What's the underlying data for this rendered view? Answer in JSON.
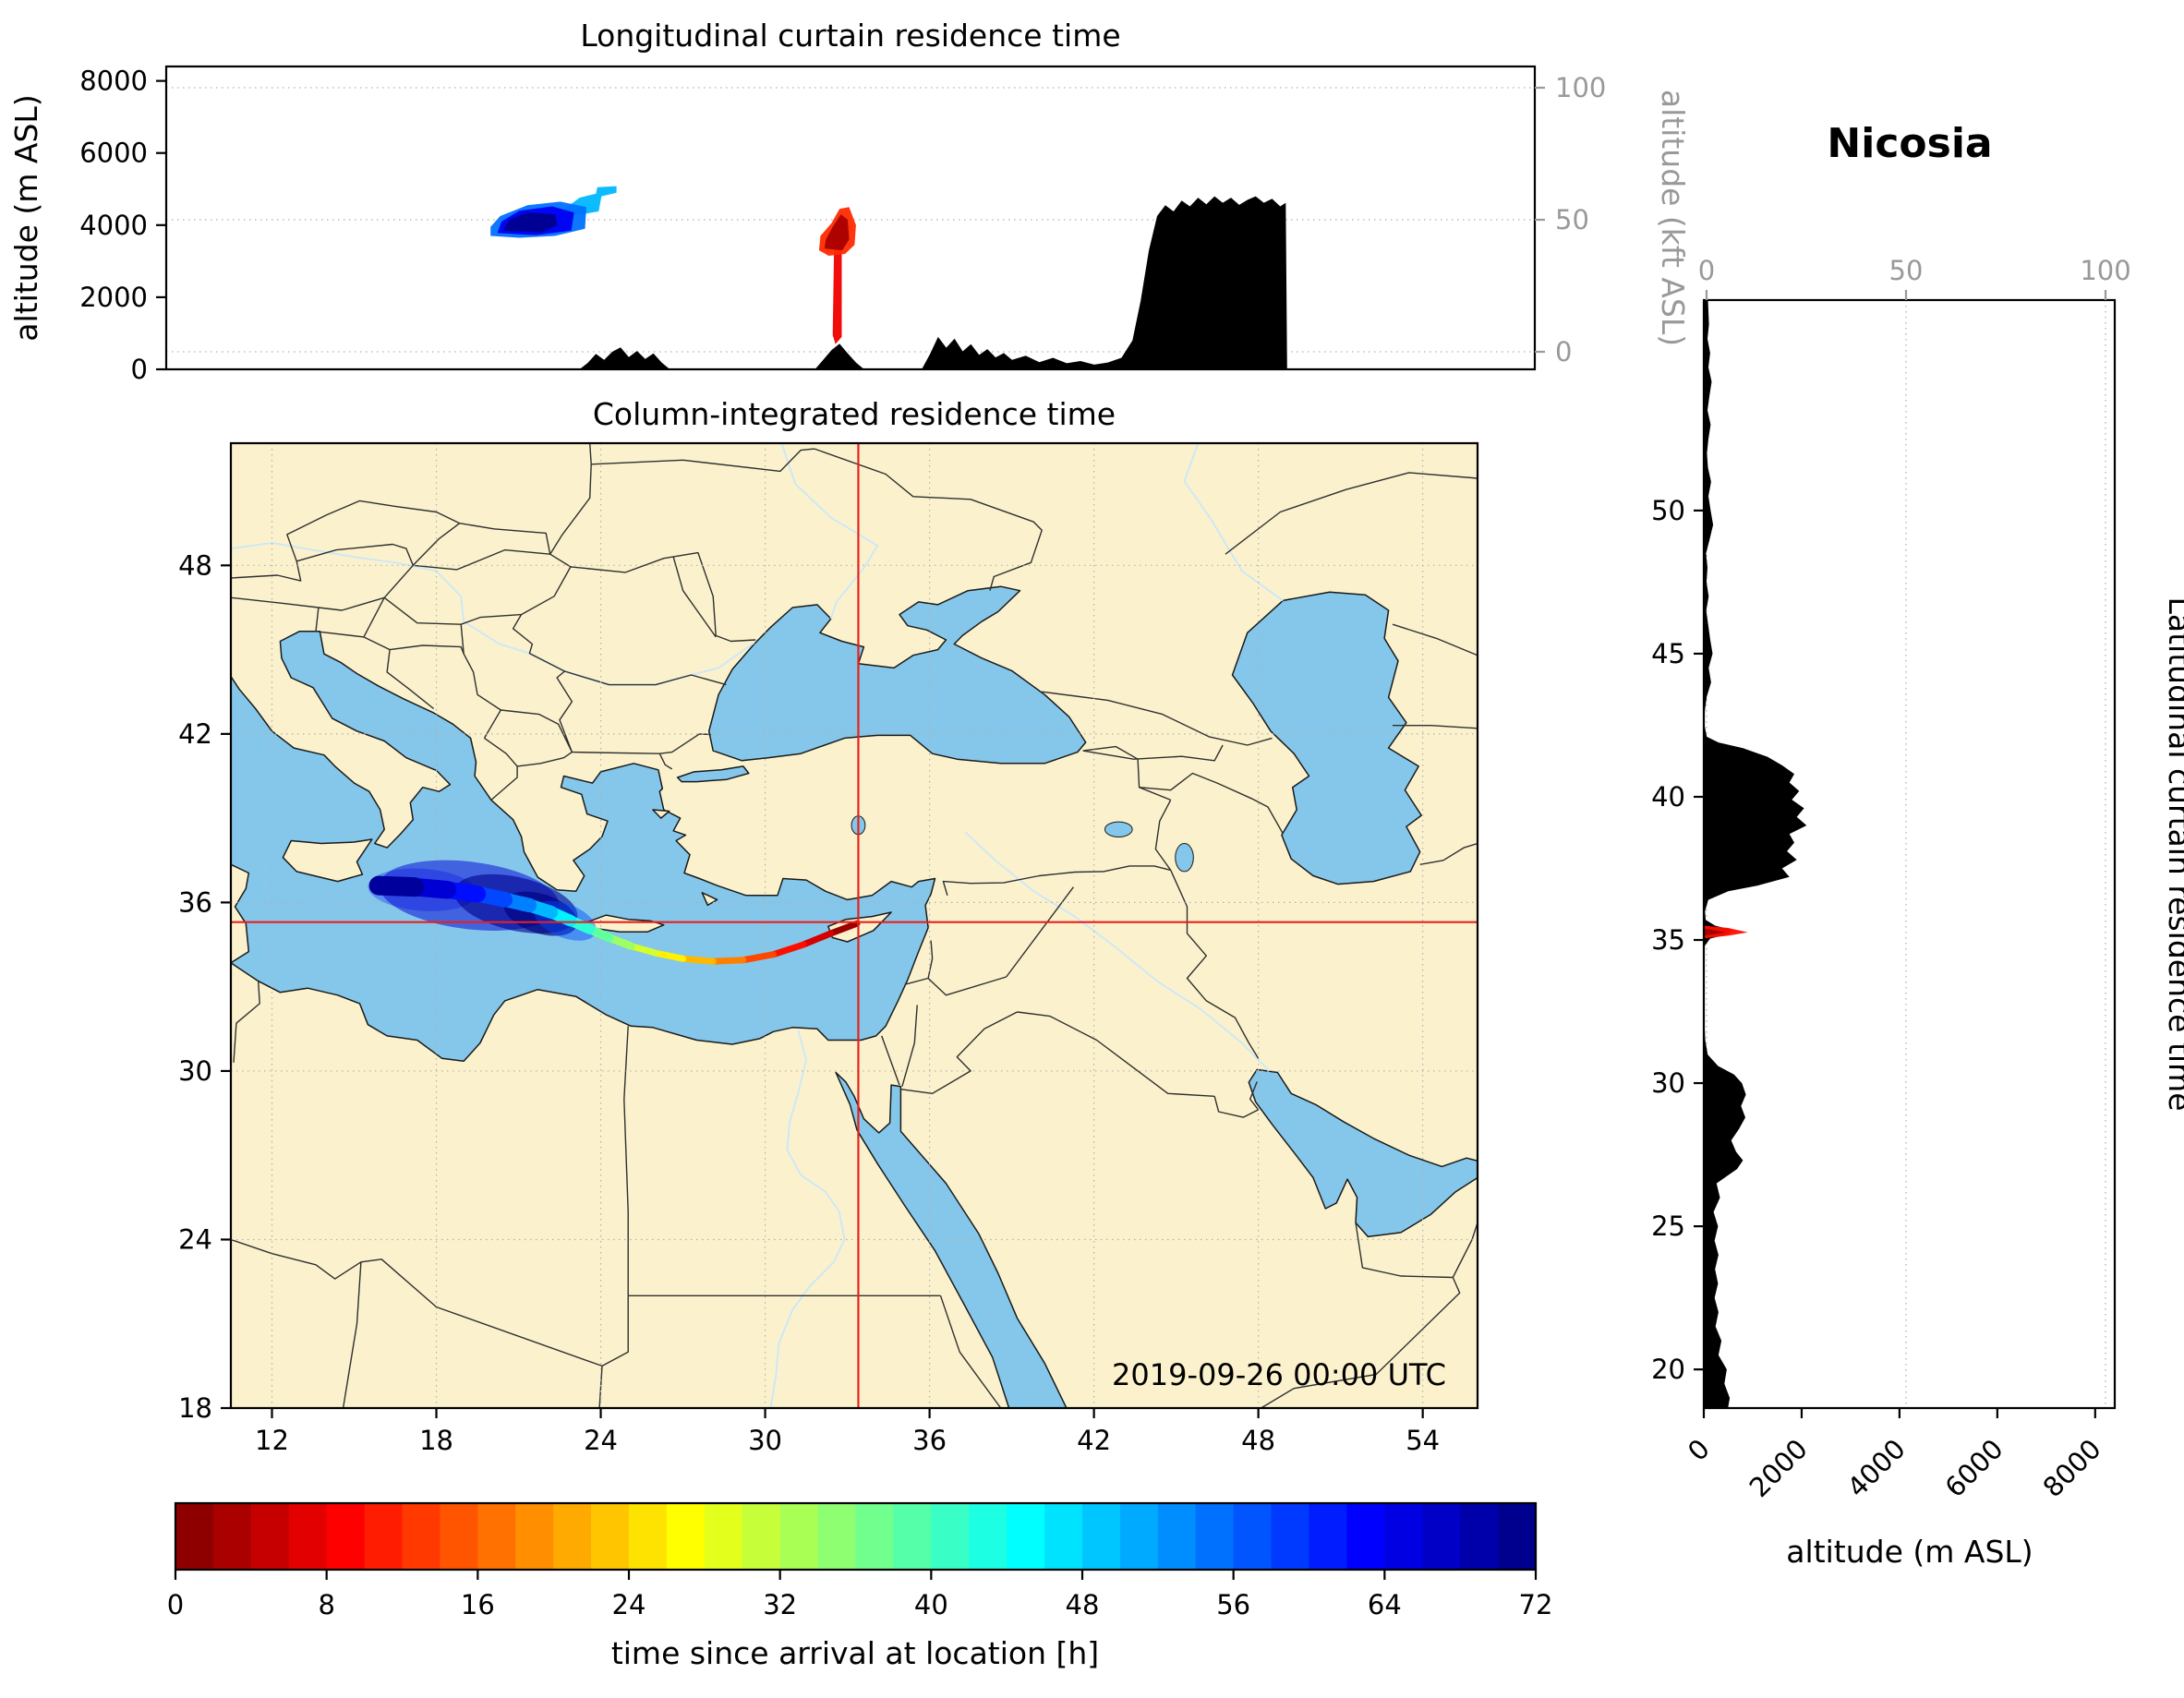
{
  "figure": {
    "station_title": "Nicosia",
    "datetime_label": "2019-09-26 00:00 UTC"
  },
  "colors": {
    "land": "#fbf2cd",
    "water": "#84c7ea",
    "terrain": "#000000",
    "crosshair": "#e8211d",
    "grid": "#b0b0b0",
    "secondary_axis": "#999999",
    "river": "#cfe8f5",
    "border_line": "#2f2f2f",
    "coastline": "#1a1a1a"
  },
  "chart_data": [
    {
      "id": "longitudinal_curtain",
      "type": "area",
      "title": "Longitudinal curtain residence time",
      "ylabel": "altitude (m ASL)",
      "ylabel_right": "altitude (kft ASL)",
      "xlim": [
        8.1,
        58.1
      ],
      "ylim": [
        0,
        8400
      ],
      "yticks": [
        0,
        2000,
        4000,
        6000,
        8000
      ],
      "yticks_right": [
        0,
        50,
        100
      ],
      "terrain": [
        [
          8.1,
          0
        ],
        [
          23.2,
          0
        ],
        [
          23.5,
          180
        ],
        [
          23.8,
          430
        ],
        [
          24.1,
          260
        ],
        [
          24.4,
          490
        ],
        [
          24.7,
          610
        ],
        [
          25.0,
          340
        ],
        [
          25.3,
          510
        ],
        [
          25.6,
          290
        ],
        [
          25.9,
          440
        ],
        [
          26.2,
          190
        ],
        [
          26.5,
          0
        ],
        [
          31.8,
          0
        ],
        [
          32.1,
          260
        ],
        [
          32.4,
          530
        ],
        [
          32.7,
          710
        ],
        [
          33.0,
          440
        ],
        [
          33.3,
          190
        ],
        [
          33.6,
          0
        ],
        [
          35.7,
          0
        ],
        [
          36.0,
          420
        ],
        [
          36.3,
          900
        ],
        [
          36.6,
          600
        ],
        [
          36.9,
          850
        ],
        [
          37.2,
          500
        ],
        [
          37.5,
          700
        ],
        [
          37.8,
          400
        ],
        [
          38.1,
          560
        ],
        [
          38.4,
          330
        ],
        [
          38.7,
          450
        ],
        [
          39.0,
          260
        ],
        [
          39.5,
          380
        ],
        [
          40.0,
          200
        ],
        [
          40.5,
          320
        ],
        [
          41.0,
          170
        ],
        [
          41.5,
          230
        ],
        [
          42.0,
          130
        ],
        [
          42.5,
          190
        ],
        [
          43.0,
          320
        ],
        [
          43.4,
          800
        ],
        [
          43.7,
          1900
        ],
        [
          44.0,
          3300
        ],
        [
          44.3,
          4250
        ],
        [
          44.6,
          4550
        ],
        [
          44.9,
          4380
        ],
        [
          45.2,
          4680
        ],
        [
          45.5,
          4520
        ],
        [
          45.8,
          4760
        ],
        [
          46.1,
          4580
        ],
        [
          46.4,
          4800
        ],
        [
          46.7,
          4620
        ],
        [
          47.0,
          4760
        ],
        [
          47.3,
          4560
        ],
        [
          47.6,
          4700
        ],
        [
          47.9,
          4800
        ],
        [
          48.2,
          4620
        ],
        [
          48.5,
          4730
        ],
        [
          48.8,
          4520
        ],
        [
          49.0,
          4620
        ],
        [
          49.05,
          0
        ],
        [
          58.1,
          0
        ]
      ],
      "plume_patches": [
        {
          "time_h": 50,
          "poly": [
            [
              22.9,
              4250
            ],
            [
              23.9,
              4380
            ],
            [
              24.0,
              4800
            ],
            [
              24.55,
              4900
            ],
            [
              24.55,
              5080
            ],
            [
              23.85,
              5050
            ],
            [
              23.8,
              4870
            ],
            [
              23.2,
              4760
            ],
            [
              22.6,
              4420
            ]
          ]
        },
        {
          "time_h": 55,
          "poly": [
            [
              19.95,
              3700
            ],
            [
              21.0,
              3650
            ],
            [
              22.3,
              3700
            ],
            [
              23.4,
              3900
            ],
            [
              23.45,
              4500
            ],
            [
              22.5,
              4650
            ],
            [
              21.3,
              4550
            ],
            [
              20.3,
              4250
            ],
            [
              19.95,
              3950
            ]
          ]
        },
        {
          "time_h": 64,
          "poly": [
            [
              20.2,
              3780
            ],
            [
              21.6,
              3720
            ],
            [
              22.9,
              3850
            ],
            [
              23.0,
              4350
            ],
            [
              22.2,
              4520
            ],
            [
              21.0,
              4400
            ],
            [
              20.35,
              4100
            ]
          ]
        },
        {
          "time_h": 71,
          "poly": [
            [
              20.4,
              3850
            ],
            [
              21.8,
              3800
            ],
            [
              22.4,
              4000
            ],
            [
              22.3,
              4300
            ],
            [
              21.3,
              4350
            ],
            [
              20.65,
              4150
            ]
          ]
        },
        {
          "time_h": 8,
          "poly": [
            [
              32.5,
              3400
            ],
            [
              32.78,
              3400
            ],
            [
              32.78,
              900
            ],
            [
              32.55,
              700
            ],
            [
              32.45,
              950
            ]
          ]
        },
        {
          "time_h": 12,
          "poly": [
            [
              31.95,
              3300
            ],
            [
              32.3,
              3150
            ],
            [
              32.9,
              3200
            ],
            [
              33.25,
              3450
            ],
            [
              33.3,
              4000
            ],
            [
              33.05,
              4500
            ],
            [
              32.7,
              4450
            ],
            [
              32.4,
              4050
            ],
            [
              32.0,
              3700
            ]
          ]
        },
        {
          "time_h": 3,
          "poly": [
            [
              32.15,
              3350
            ],
            [
              32.8,
              3300
            ],
            [
              33.05,
              3600
            ],
            [
              33.0,
              4150
            ],
            [
              32.75,
              4300
            ],
            [
              32.45,
              3950
            ],
            [
              32.2,
              3600
            ]
          ]
        }
      ]
    },
    {
      "id": "column_integrated_map",
      "type": "heatmap",
      "title": "Column-integrated residence time",
      "xlim": [
        10.5,
        56.0
      ],
      "ylim": [
        18.0,
        52.35
      ],
      "xticks": [
        12,
        18,
        24,
        30,
        36,
        42,
        48,
        54
      ],
      "yticks": [
        18,
        24,
        30,
        36,
        42,
        48
      ],
      "receptor": {
        "lon": 33.4,
        "lat": 35.3
      },
      "trajectory": [
        [
          33.35,
          35.25,
          0
        ],
        [
          32.4,
          34.9,
          4
        ],
        [
          31.4,
          34.5,
          8
        ],
        [
          30.3,
          34.15,
          12
        ],
        [
          29.2,
          33.95,
          16
        ],
        [
          28.1,
          33.9,
          20
        ],
        [
          27.0,
          34.0,
          24
        ],
        [
          26.0,
          34.2,
          28
        ],
        [
          25.1,
          34.45,
          32
        ],
        [
          24.3,
          34.75,
          36
        ],
        [
          23.6,
          35.05,
          40
        ],
        [
          22.9,
          35.35,
          44
        ],
        [
          22.2,
          35.65,
          48
        ],
        [
          21.4,
          35.9,
          52
        ],
        [
          20.5,
          36.1,
          56
        ],
        [
          19.5,
          36.3,
          60
        ],
        [
          18.4,
          36.45,
          64
        ],
        [
          17.2,
          36.55,
          68
        ],
        [
          15.9,
          36.6,
          72
        ]
      ],
      "dispersion_blobs": [
        {
          "time_h": 62,
          "lon": 17.5,
          "lat": 36.45,
          "rx_deg": 2.0,
          "ry_deg": 0.75,
          "rot_deg": 4,
          "opacity": 0.3
        },
        {
          "time_h": 66,
          "lon": 19.2,
          "lat": 36.25,
          "rx_deg": 3.3,
          "ry_deg": 1.2,
          "rot_deg": 7,
          "opacity": 0.5
        },
        {
          "time_h": 71,
          "lon": 20.9,
          "lat": 35.95,
          "rx_deg": 2.3,
          "ry_deg": 0.95,
          "rot_deg": 13,
          "opacity": 0.6
        },
        {
          "time_h": 72,
          "lon": 21.8,
          "lat": 35.6,
          "rx_deg": 1.4,
          "ry_deg": 0.7,
          "rot_deg": 18,
          "opacity": 0.65
        },
        {
          "time_h": 58,
          "lon": 22.7,
          "lat": 35.35,
          "rx_deg": 1.2,
          "ry_deg": 0.6,
          "rot_deg": 22,
          "opacity": 0.45
        }
      ]
    },
    {
      "id": "latitudinal_curtain",
      "type": "area",
      "title_right": "Latitudinal curtain residence time",
      "xlabel": "altitude (m ASL)",
      "xlim": [
        0,
        8400
      ],
      "xticks": [
        0,
        2000,
        4000,
        6000,
        8000
      ],
      "xticks_top": [
        0,
        50,
        100
      ],
      "ylim": [
        18.65,
        57.35
      ],
      "yticks": [
        20,
        25,
        30,
        35,
        40,
        45,
        50
      ],
      "terrain": [
        [
          18.0,
          380
        ],
        [
          18.5,
          480
        ],
        [
          19.0,
          530
        ],
        [
          19.5,
          420
        ],
        [
          20.0,
          470
        ],
        [
          20.5,
          300
        ],
        [
          21.0,
          360
        ],
        [
          21.5,
          240
        ],
        [
          22.0,
          300
        ],
        [
          22.5,
          220
        ],
        [
          23.0,
          290
        ],
        [
          23.5,
          230
        ],
        [
          24.0,
          300
        ],
        [
          24.5,
          220
        ],
        [
          25.0,
          290
        ],
        [
          25.5,
          200
        ],
        [
          26.0,
          330
        ],
        [
          26.5,
          260
        ],
        [
          27.0,
          680
        ],
        [
          27.3,
          800
        ],
        [
          27.6,
          660
        ],
        [
          28.0,
          560
        ],
        [
          28.4,
          720
        ],
        [
          28.8,
          850
        ],
        [
          29.2,
          760
        ],
        [
          29.6,
          860
        ],
        [
          30.0,
          780
        ],
        [
          30.3,
          620
        ],
        [
          30.6,
          290
        ],
        [
          31.0,
          80
        ],
        [
          31.5,
          30
        ],
        [
          32.0,
          15
        ],
        [
          33.0,
          10
        ],
        [
          34.0,
          10
        ],
        [
          34.8,
          20
        ],
        [
          35.05,
          130
        ],
        [
          35.2,
          500
        ],
        [
          35.35,
          580
        ],
        [
          35.5,
          230
        ],
        [
          35.7,
          40
        ],
        [
          36.0,
          25
        ],
        [
          36.4,
          90
        ],
        [
          36.7,
          500
        ],
        [
          36.9,
          1100
        ],
        [
          37.2,
          1750
        ],
        [
          37.5,
          1600
        ],
        [
          37.8,
          1900
        ],
        [
          38.1,
          1700
        ],
        [
          38.4,
          1850
        ],
        [
          38.7,
          1750
        ],
        [
          39.0,
          2100
        ],
        [
          39.3,
          1900
        ],
        [
          39.6,
          2050
        ],
        [
          39.9,
          1800
        ],
        [
          40.2,
          1950
        ],
        [
          40.5,
          1750
        ],
        [
          40.8,
          1850
        ],
        [
          41.1,
          1600
        ],
        [
          41.4,
          1300
        ],
        [
          41.7,
          800
        ],
        [
          41.9,
          300
        ],
        [
          42.1,
          60
        ],
        [
          42.5,
          15
        ],
        [
          43.0,
          20
        ],
        [
          43.5,
          60
        ],
        [
          44.0,
          150
        ],
        [
          44.5,
          100
        ],
        [
          45.0,
          180
        ],
        [
          45.5,
          130
        ],
        [
          46.0,
          90
        ],
        [
          46.5,
          50
        ],
        [
          47.0,
          100
        ],
        [
          47.5,
          55
        ],
        [
          48.0,
          75
        ],
        [
          48.5,
          45
        ],
        [
          49.0,
          120
        ],
        [
          49.5,
          190
        ],
        [
          50.0,
          140
        ],
        [
          50.5,
          95
        ],
        [
          51.0,
          150
        ],
        [
          51.5,
          85
        ],
        [
          52.0,
          65
        ],
        [
          52.5,
          95
        ],
        [
          53.0,
          140
        ],
        [
          53.5,
          75
        ],
        [
          54.0,
          115
        ],
        [
          54.5,
          160
        ],
        [
          55.0,
          95
        ],
        [
          55.5,
          130
        ],
        [
          56.0,
          75
        ],
        [
          56.5,
          105
        ],
        [
          57.35,
          85
        ]
      ],
      "plume_patches": [
        {
          "time_h": 10,
          "poly": [
            [
              0,
              35.06
            ],
            [
              500,
              35.15
            ],
            [
              900,
              35.27
            ],
            [
              500,
              35.42
            ],
            [
              0,
              35.5
            ]
          ]
        },
        {
          "time_h": 2,
          "poly": [
            [
              0,
              35.15
            ],
            [
              450,
              35.27
            ],
            [
              0,
              35.4
            ]
          ]
        }
      ]
    },
    {
      "id": "colorbar",
      "type": "colorbar",
      "label": "time since arrival at location [h]",
      "ticks": [
        0,
        8,
        16,
        24,
        32,
        40,
        48,
        56,
        64,
        72
      ],
      "range": [
        0,
        72
      ],
      "colormap": "jet_r",
      "n_segments": 36
    }
  ]
}
